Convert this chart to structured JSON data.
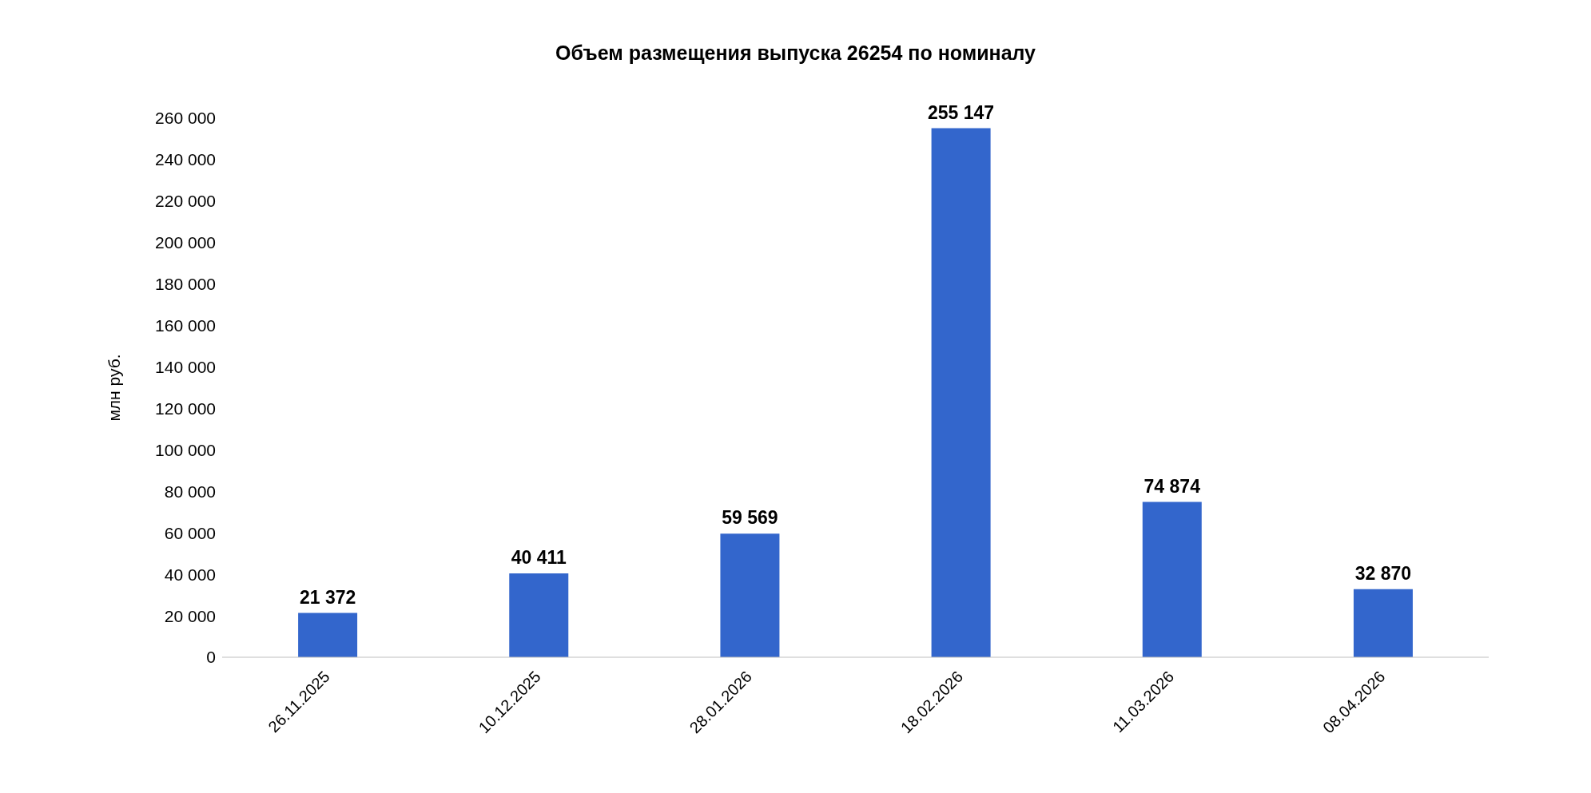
{
  "chart_data": {
    "type": "bar",
    "title": "Объем размещения выпуска 26254 по номиналу",
    "ylabel": "млн руб.",
    "categories": [
      "26.11.2025",
      "10.12.2025",
      "28.01.2026",
      "18.02.2026",
      "11.03.2026",
      "08.04.2026"
    ],
    "series": [
      {
        "color": "#3366cc",
        "values": [
          21372,
          40411,
          59569,
          255147,
          74874,
          32870
        ],
        "value_labels": [
          "21 372",
          "40 411",
          "59 569",
          "255 147",
          "74 874",
          "32 870"
        ]
      }
    ],
    "ylim": [
      0,
      260000
    ],
    "yticks": [
      {
        "value": 0,
        "label": "0"
      },
      {
        "value": 20000,
        "label": "20 000"
      },
      {
        "value": 40000,
        "label": "40 000"
      },
      {
        "value": 60000,
        "label": "60 000"
      },
      {
        "value": 80000,
        "label": "80 000"
      },
      {
        "value": 100000,
        "label": "100 000"
      },
      {
        "value": 120000,
        "label": "120 000"
      },
      {
        "value": 140000,
        "label": "140 000"
      },
      {
        "value": 160000,
        "label": "160 000"
      },
      {
        "value": 180000,
        "label": "180 000"
      },
      {
        "value": 200000,
        "label": "200 000"
      },
      {
        "value": 220000,
        "label": "220 000"
      },
      {
        "value": 240000,
        "label": "240 000"
      },
      {
        "value": 260000,
        "label": "260 000"
      }
    ],
    "grid": false,
    "legend": false
  }
}
